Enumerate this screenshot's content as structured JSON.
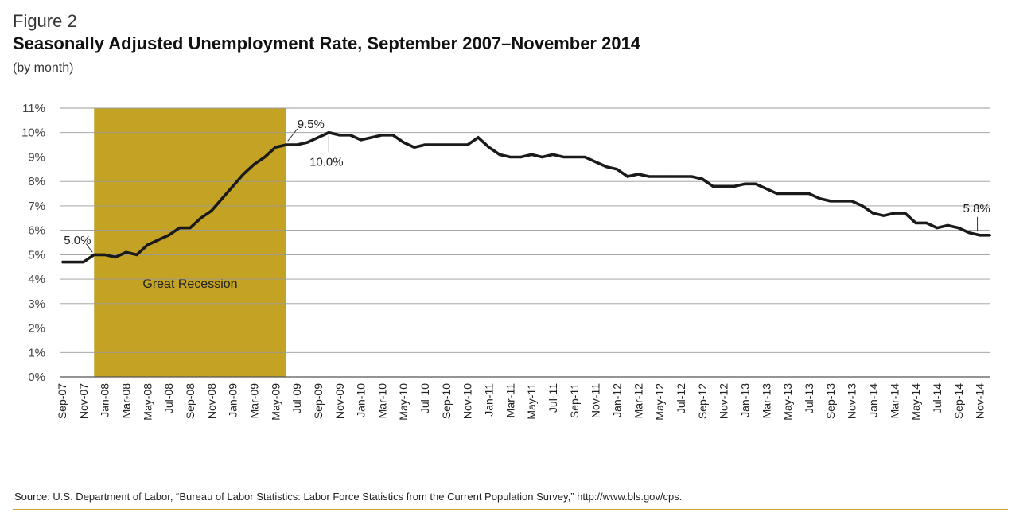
{
  "header": {
    "figure_label": "Figure 2",
    "title": "Seasonally Adjusted Unemployment Rate, September 2007–November 2014",
    "subtitle": "(by month)"
  },
  "footer": {
    "source": "Source: U.S. Department of Labor, “Bureau of Labor Statistics: Labor Force Statistics from the Current Population Survey,” http://www.bls.gov/cps."
  },
  "colors": {
    "recession": "#c3a224",
    "line": "#1a1a1a",
    "grid": "#9a9a9a",
    "rule": "#c8a832"
  },
  "chart_data": {
    "type": "line",
    "title": "Seasonally Adjusted Unemployment Rate, September 2007–November 2014",
    "xlabel": "",
    "ylabel": "",
    "ylim": [
      0,
      11
    ],
    "y_ticks": [
      "0%",
      "1%",
      "2%",
      "3%",
      "4%",
      "5%",
      "6%",
      "7%",
      "8%",
      "9%",
      "10%",
      "11%"
    ],
    "x_tick_labels": [
      "Sep-07",
      "Nov-07",
      "Jan-08",
      "Mar-08",
      "May-08",
      "Jul-08",
      "Sep-08",
      "Nov-08",
      "Jan-09",
      "Mar-09",
      "May-09",
      "Jul-09",
      "Sep-09",
      "Nov-09",
      "Jan-10",
      "Mar-10",
      "May-10",
      "Jul-10",
      "Sep-10",
      "Nov-10",
      "Jan-11",
      "Mar-11",
      "May-11",
      "Jul-11",
      "Sep-11",
      "Nov-11",
      "Jan-12",
      "Mar-12",
      "May-12",
      "Jul-12",
      "Sep-12",
      "Nov-12",
      "Jan-13",
      "Mar-13",
      "May-13",
      "Jul-13",
      "Sep-13",
      "Nov-13",
      "Jan-14",
      "Mar-14",
      "May-14",
      "Jul-14",
      "Sep-14",
      "Nov-14"
    ],
    "series": [
      {
        "name": "Unemployment rate",
        "values": [
          4.7,
          4.7,
          4.7,
          5.0,
          5.0,
          4.9,
          5.1,
          5.0,
          5.4,
          5.6,
          5.8,
          6.1,
          6.1,
          6.5,
          6.8,
          7.3,
          7.8,
          8.3,
          8.7,
          9.0,
          9.4,
          9.5,
          9.5,
          9.6,
          9.8,
          10.0,
          9.9,
          9.9,
          9.7,
          9.8,
          9.9,
          9.9,
          9.6,
          9.4,
          9.5,
          9.5,
          9.5,
          9.5,
          9.5,
          9.8,
          9.4,
          9.1,
          9.0,
          9.0,
          9.1,
          9.0,
          9.1,
          9.0,
          9.0,
          9.0,
          8.8,
          8.6,
          8.5,
          8.2,
          8.3,
          8.2,
          8.2,
          8.2,
          8.2,
          8.2,
          8.1,
          7.8,
          7.8,
          7.8,
          7.9,
          7.9,
          7.7,
          7.5,
          7.5,
          7.5,
          7.5,
          7.3,
          7.2,
          7.2,
          7.2,
          7.0,
          6.7,
          6.6,
          6.7,
          6.7,
          6.3,
          6.3,
          6.1,
          6.2,
          6.1,
          5.9,
          5.8,
          5.8
        ]
      }
    ],
    "shaded_region": {
      "label": "Great Recession",
      "start": "Dec-07",
      "end": "Jun-09"
    },
    "annotations": [
      {
        "text": "5.0%",
        "month": "Dec-07",
        "value": 5.0
      },
      {
        "text": "9.5%",
        "month": "Jun-09",
        "value": 9.5
      },
      {
        "text": "10.0%",
        "month": "Oct-09",
        "value": 10.0
      },
      {
        "text": "5.8%",
        "month": "Nov-14",
        "value": 5.8
      }
    ]
  }
}
